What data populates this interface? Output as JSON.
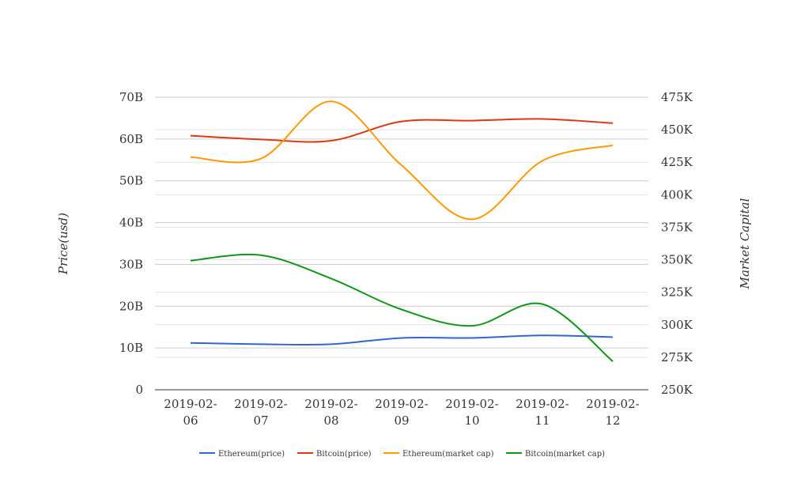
{
  "chart_data": {
    "type": "line",
    "x": [
      "2019-02-06",
      "2019-02-07",
      "2019-02-08",
      "2019-02-09",
      "2019-02-10",
      "2019-02-11",
      "2019-02-12"
    ],
    "x_tick_labels": [
      [
        "2019-02-",
        "06"
      ],
      [
        "2019-02-",
        "07"
      ],
      [
        "2019-02-",
        "08"
      ],
      [
        "2019-02-",
        "09"
      ],
      [
        "2019-02-",
        "10"
      ],
      [
        "2019-02-",
        "11"
      ],
      [
        "2019-02-",
        "12"
      ]
    ],
    "ylabel_left": "Price(usd)",
    "ylabel_right": "Market Capital",
    "ylim_left": [
      0,
      70000000000
    ],
    "ylim_right": [
      250000,
      475000
    ],
    "yticks_left": [
      {
        "value": 0,
        "label": "0"
      },
      {
        "value": 10000000000,
        "label": "10B"
      },
      {
        "value": 20000000000,
        "label": "20B"
      },
      {
        "value": 30000000000,
        "label": "30B"
      },
      {
        "value": 40000000000,
        "label": "40B"
      },
      {
        "value": 50000000000,
        "label": "50B"
      },
      {
        "value": 60000000000,
        "label": "60B"
      },
      {
        "value": 70000000000,
        "label": "70B"
      }
    ],
    "yticks_right": [
      {
        "value": 250000,
        "label": "250K"
      },
      {
        "value": 275000,
        "label": "275K"
      },
      {
        "value": 300000,
        "label": "300K"
      },
      {
        "value": 325000,
        "label": "325K"
      },
      {
        "value": 350000,
        "label": "350K"
      },
      {
        "value": 375000,
        "label": "375K"
      },
      {
        "value": 400000,
        "label": "400K"
      },
      {
        "value": 425000,
        "label": "425K"
      },
      {
        "value": 450000,
        "label": "450K"
      },
      {
        "value": 475000,
        "label": "475K"
      }
    ],
    "grid": true,
    "legend_position": "bottom",
    "series": [
      {
        "name": "Ethereum(price)",
        "color": "#3366cc",
        "axis": "left",
        "values": [
          11200000000,
          10900000000,
          10900000000,
          12400000000,
          12400000000,
          13000000000,
          12600000000
        ]
      },
      {
        "name": "Bitcoin(price)",
        "color": "#dc3912",
        "axis": "left",
        "values": [
          60800000000,
          59900000000,
          59600000000,
          64200000000,
          64400000000,
          64800000000,
          63800000000
        ]
      },
      {
        "name": "Ethereum(market cap)",
        "color": "#ff9900",
        "axis": "left",
        "values": [
          55700000000,
          55300000000,
          69000000000,
          53700000000,
          40800000000,
          54800000000,
          58500000000
        ]
      },
      {
        "name": "Bitcoin(market cap)",
        "color": "#109618",
        "axis": "left",
        "values": [
          30900000000,
          32200000000,
          26600000000,
          19200000000,
          15300000000,
          20500000000,
          6800000000
        ]
      }
    ]
  }
}
